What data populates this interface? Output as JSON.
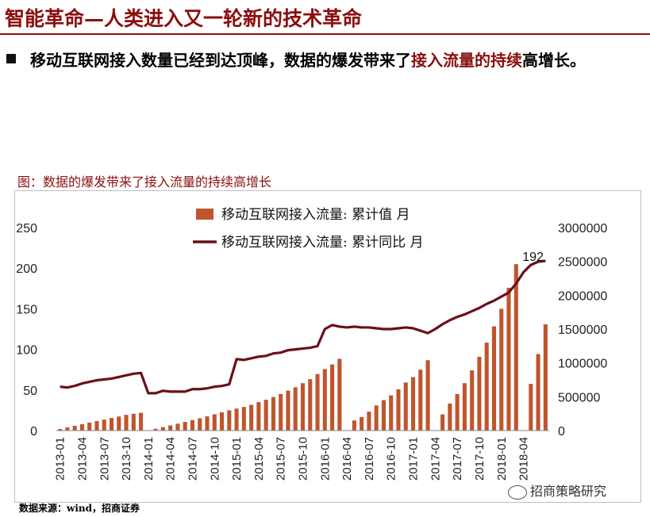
{
  "header": {
    "title": "智能革命—人类进入又一轮新的技术革命"
  },
  "bullet": {
    "text_main": "移动互联网接入数量已经到达顶峰，数据的爆发带来了",
    "text_highlight": "接入流量的持续",
    "text_end": "高增长。"
  },
  "figure": {
    "caption": "图：数据的爆发带来了接入流量的持续高增长"
  },
  "source": "数据来源：wind，招商证券",
  "watermark": "招商策略研究",
  "colors": {
    "bar": "#c0552d",
    "line": "#6b0f1a",
    "brand": "#8b0e0e"
  },
  "chart_data": {
    "type": "bar+line",
    "series": [
      {
        "name": "移动互联网接入流量: 累计值 月",
        "type": "bar",
        "axis": "right",
        "values": [
          23000,
          46000,
          70000,
          94000,
          118000,
          140000,
          162000,
          185000,
          208000,
          232000,
          248000,
          262000,
          null,
          27000,
          50000,
          76000,
          102000,
          128000,
          155000,
          182000,
          210000,
          240000,
          270000,
          300000,
          325000,
          350000,
          380000,
          420000,
          455000,
          495000,
          540000,
          590000,
          640000,
          700000,
          760000,
          835000,
          908000,
          977000,
          1060000,
          null,
          150000,
          200000,
          280000,
          370000,
          450000,
          520000,
          610000,
          710000,
          790000,
          900000,
          1040000,
          null,
          240000,
          400000,
          540000,
          700000,
          890000,
          1090000,
          1300000,
          1540000,
          1800000,
          2110000,
          2460000,
          null,
          690000,
          1130000,
          1570000
        ]
      },
      {
        "name": "移动互联网接入流量: 累计同比 月",
        "type": "line",
        "axis": "left",
        "values": [
          54,
          53,
          55,
          58,
          60,
          62,
          63,
          64,
          66,
          68,
          70,
          71,
          46,
          46,
          49,
          48,
          48,
          48,
          51,
          51,
          52,
          54,
          55,
          57,
          88,
          87,
          89,
          91,
          92,
          95,
          96,
          99,
          100,
          101,
          102,
          104,
          125,
          130,
          128,
          127,
          128,
          127,
          127,
          126,
          125,
          125,
          126,
          127,
          126,
          123,
          120,
          125,
          131,
          136,
          140,
          143,
          147,
          151,
          156,
          160,
          165,
          170,
          181,
          195,
          204,
          208,
          209
        ]
      }
    ],
    "categories": [
      "2013-01",
      "2013-02",
      "2013-03",
      "2013-04",
      "2013-05",
      "2013-06",
      "2013-07",
      "2013-08",
      "2013-09",
      "2013-10",
      "2013-11",
      "2013-12",
      "2014-01",
      "2014-02",
      "2014-03",
      "2014-04",
      "2014-05",
      "2014-06",
      "2014-07",
      "2014-08",
      "2014-09",
      "2014-10",
      "2014-11",
      "2014-12",
      "2015-01",
      "2015-02",
      "2015-03",
      "2015-04",
      "2015-05",
      "2015-06",
      "2015-07",
      "2015-08",
      "2015-09",
      "2015-10",
      "2015-11",
      "2015-12",
      "2016-01",
      "2016-02",
      "2016-03",
      "2016-04",
      "2016-05",
      "2016-06",
      "2016-07",
      "2016-08",
      "2016-09",
      "2016-10",
      "2016-11",
      "2016-12",
      "2017-01",
      "2017-02",
      "2017-03",
      "2017-04",
      "2017-05",
      "2017-06",
      "2017-07",
      "2017-08",
      "2017-09",
      "2017-10",
      "2017-11",
      "2017-12",
      "2018-01",
      "2018-02",
      "2018-03",
      "2018-04",
      "2018-05",
      "2018-06",
      "2018-07"
    ],
    "tick_labels": [
      "2013-01",
      "2013-04",
      "2013-07",
      "2013-10",
      "2014-01",
      "2014-04",
      "2014-07",
      "2014-10",
      "2015-01",
      "2015-04",
      "2015-07",
      "2015-10",
      "2016-01",
      "2016-04",
      "2016-07",
      "2016-10",
      "2017-01",
      "2017-04",
      "2017-07",
      "2017-10",
      "2018-01",
      "2018-04"
    ],
    "left_axis": {
      "ylim": [
        0,
        250
      ],
      "ticks": [
        "0",
        "50",
        "100",
        "150",
        "200",
        "250"
      ]
    },
    "right_axis": {
      "ylim": [
        0,
        3000000
      ],
      "ticks": [
        "0",
        "500000",
        "1000000",
        "1500000",
        "2000000",
        "2500000",
        "3000000"
      ]
    },
    "annotation": "192",
    "legend_position": "top-center"
  }
}
